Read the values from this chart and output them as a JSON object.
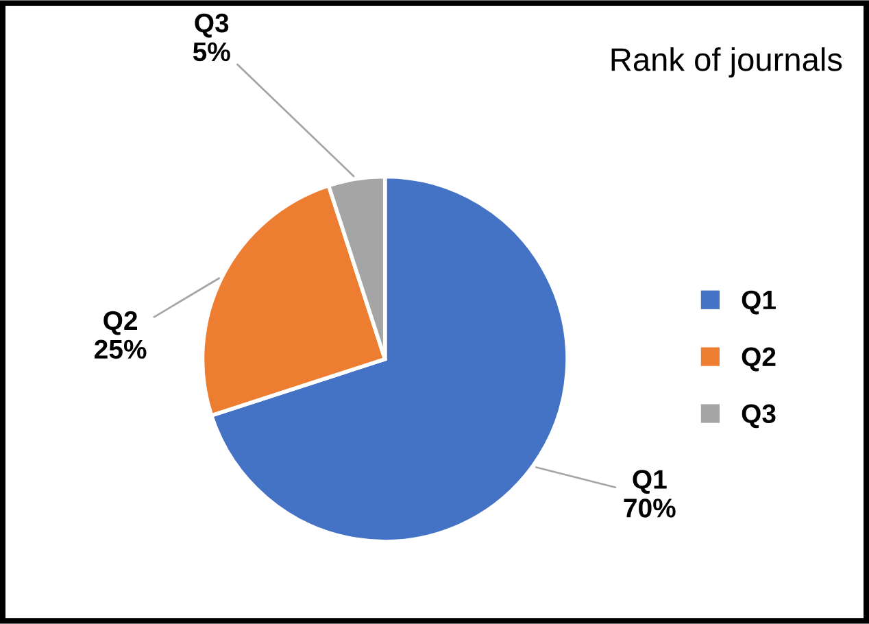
{
  "chart_data": {
    "type": "pie",
    "title": "Rank of journals",
    "categories": [
      "Q1",
      "Q2",
      "Q3"
    ],
    "values": [
      70,
      25,
      5
    ],
    "colors": [
      "#4472c4",
      "#ed7d31",
      "#a5a5a5"
    ],
    "value_labels": [
      "70%",
      "25%",
      "5%"
    ],
    "legend": "right"
  }
}
